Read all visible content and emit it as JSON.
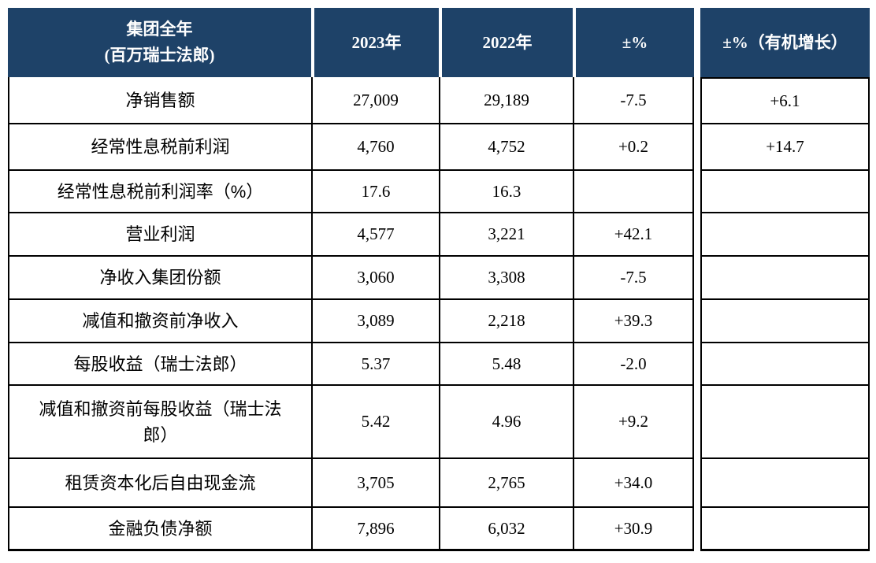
{
  "theme": {
    "header_bg": "#1e4268",
    "header_text": "#ffffff",
    "border_color": "#000000",
    "body_text": "#000000"
  },
  "table": {
    "header": {
      "group_title_line1": "集团全年",
      "group_title_line2": "(百万瑞士法郎)",
      "col_2023": "2023年",
      "col_2022": "2022年",
      "col_pct": "±%",
      "col_pct_organic": "±%（有机增长）"
    },
    "rows": [
      {
        "label": "净销售额",
        "v2023": "27,009",
        "v2022": "29,189",
        "pct": "-7.5",
        "organic": "+6.1"
      },
      {
        "label": "经常性息税前利润",
        "v2023": "4,760",
        "v2022": "4,752",
        "pct": "+0.2",
        "organic": "+14.7"
      },
      {
        "label": "经常性息税前利润率（%）",
        "v2023": "17.6",
        "v2022": "16.3",
        "pct": "",
        "organic": ""
      },
      {
        "label": "营业利润",
        "v2023": "4,577",
        "v2022": "3,221",
        "pct": "+42.1",
        "organic": ""
      },
      {
        "label": "净收入集团份额",
        "v2023": "3,060",
        "v2022": "3,308",
        "pct": "-7.5",
        "organic": ""
      },
      {
        "label": "减值和撤资前净收入",
        "v2023": "3,089",
        "v2022": "2,218",
        "pct": "+39.3",
        "organic": ""
      },
      {
        "label": "每股收益（瑞士法郎）",
        "v2023": "5.37",
        "v2022": "5.48",
        "pct": "-2.0",
        "organic": ""
      },
      {
        "label": "减值和撤资前每股收益（瑞士法郎）",
        "v2023": "5.42",
        "v2022": "4.96",
        "pct": "+9.2",
        "organic": ""
      },
      {
        "label": "租赁资本化后自由现金流",
        "v2023": "3,705",
        "v2022": "2,765",
        "pct": "+34.0",
        "organic": ""
      },
      {
        "label": "金融负债净额",
        "v2023": "7,896",
        "v2022": "6,032",
        "pct": "+30.9",
        "organic": ""
      }
    ]
  }
}
